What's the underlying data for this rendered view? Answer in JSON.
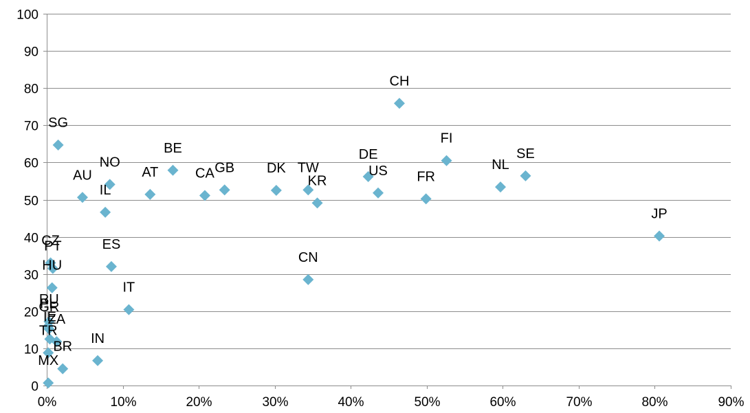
{
  "chart_data": {
    "type": "scatter",
    "title": "",
    "xlabel": "",
    "ylabel": "",
    "xlim": [
      0,
      0.9
    ],
    "ylim": [
      0,
      100
    ],
    "x_ticks": [
      "0%",
      "10%",
      "20%",
      "30%",
      "40%",
      "50%",
      "60%",
      "70%",
      "80%",
      "90%"
    ],
    "y_ticks": [
      "0",
      "10",
      "20",
      "30",
      "40",
      "50",
      "60",
      "70",
      "80",
      "90",
      "100"
    ],
    "grid": "horizontal",
    "marker": "diamond",
    "marker_color": "#6ab4cf",
    "grid_color": "#8c8c8c",
    "points": [
      {
        "label": "SG",
        "x": 0.015,
        "y": 64.7
      },
      {
        "label": "AU",
        "x": 0.047,
        "y": 50.6
      },
      {
        "label": "NO",
        "x": 0.083,
        "y": 54.1
      },
      {
        "label": "IL",
        "x": 0.077,
        "y": 46.6
      },
      {
        "label": "AT",
        "x": 0.136,
        "y": 51.4
      },
      {
        "label": "BE",
        "x": 0.166,
        "y": 57.9
      },
      {
        "label": "CA",
        "x": 0.208,
        "y": 51.1
      },
      {
        "label": "GB",
        "x": 0.234,
        "y": 52.6
      },
      {
        "label": "DK",
        "x": 0.302,
        "y": 52.5
      },
      {
        "label": "TW",
        "x": 0.344,
        "y": 52.6
      },
      {
        "label": "KR",
        "x": 0.356,
        "y": 49.1
      },
      {
        "label": "DE",
        "x": 0.423,
        "y": 56.2
      },
      {
        "label": "US",
        "x": 0.436,
        "y": 51.8
      },
      {
        "label": "CH",
        "x": 0.464,
        "y": 75.9
      },
      {
        "label": "FR",
        "x": 0.499,
        "y": 50.2
      },
      {
        "label": "FI",
        "x": 0.526,
        "y": 60.5
      },
      {
        "label": "NL",
        "x": 0.597,
        "y": 53.4
      },
      {
        "label": "SE",
        "x": 0.63,
        "y": 56.4
      },
      {
        "label": "JP",
        "x": 0.806,
        "y": 40.2
      },
      {
        "label": "CN",
        "x": 0.344,
        "y": 28.5
      },
      {
        "label": "ES",
        "x": 0.085,
        "y": 32.0
      },
      {
        "label": "IT",
        "x": 0.108,
        "y": 20.4
      },
      {
        "label": "IN",
        "x": 0.067,
        "y": 6.7
      },
      {
        "label": "CZ",
        "x": 0.005,
        "y": 33.0
      },
      {
        "label": "PT",
        "x": 0.008,
        "y": 31.5
      },
      {
        "label": "HU",
        "x": 0.007,
        "y": 26.3
      },
      {
        "label": "RU",
        "x": 0.003,
        "y": 17.2
      },
      {
        "label": "PL",
        "x": 0.002,
        "y": 16.0
      },
      {
        "label": "GR",
        "x": 0.003,
        "y": 15.2
      },
      {
        "label": "ZA",
        "x": 0.013,
        "y": 11.8
      },
      {
        "label": "IE",
        "x": 0.004,
        "y": 12.5
      },
      {
        "label": "TR",
        "x": 0.002,
        "y": 8.8
      },
      {
        "label": "BR",
        "x": 0.021,
        "y": 4.5
      },
      {
        "label": "MX",
        "x": 0.002,
        "y": 0.7
      }
    ]
  }
}
